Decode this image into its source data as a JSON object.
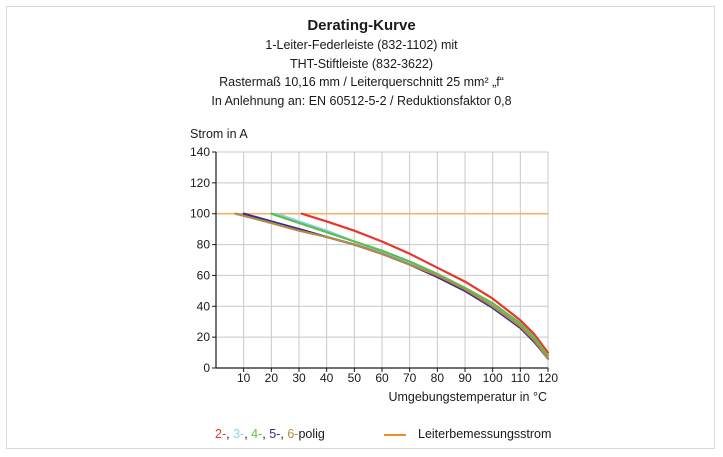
{
  "chart_data": {
    "type": "line",
    "title": "Derating-Kurve",
    "subtitle_lines": [
      "1-Leiter-Federleiste (832-1102) mit",
      "THT-Stiftleiste (832-3622)",
      "Rastermaß 10,16 mm / Leiterquerschnitt 25 mm² „f“",
      "In Anlehnung an: EN 60512-5-2 / Reduktionsfaktor 0,8"
    ],
    "ylabel": "Strom in A",
    "xlabel": "Umgebungstemperatur in °C",
    "xlim": [
      0,
      120
    ],
    "ylim": [
      0,
      140
    ],
    "xticks": [
      "10",
      "20",
      "30",
      "40",
      "50",
      "60",
      "70",
      "80",
      "90",
      "100",
      "110",
      "120"
    ],
    "yticks": [
      "0",
      "20",
      "40",
      "60",
      "80",
      "100",
      "120",
      "140"
    ],
    "grid": true,
    "series": [
      {
        "name": "2-",
        "color": "#e8352b",
        "x": [
          31,
          40,
          50,
          60,
          70,
          80,
          90,
          100,
          110,
          115,
          120
        ],
        "y": [
          100,
          95,
          89,
          82,
          74,
          65,
          56,
          45,
          31,
          22,
          10
        ]
      },
      {
        "name": "3-",
        "color": "#8fd0e6",
        "x": [
          22,
          30,
          40,
          50,
          60,
          70,
          80,
          90,
          100,
          110,
          115,
          120
        ],
        "y": [
          100,
          95,
          89,
          82,
          75,
          68,
          60,
          51,
          41,
          28,
          19,
          8
        ]
      },
      {
        "name": "4-",
        "color": "#5cbf4d",
        "x": [
          20,
          30,
          40,
          50,
          60,
          70,
          80,
          90,
          100,
          110,
          115,
          120
        ],
        "y": [
          100,
          94,
          88,
          82,
          76,
          69,
          61,
          52,
          42,
          29,
          20,
          8
        ]
      },
      {
        "name": "5-",
        "color": "#3b2a8c",
        "x": [
          10,
          20,
          30,
          40,
          50,
          60,
          70,
          80,
          90,
          100,
          110,
          115,
          120
        ],
        "y": [
          100,
          95,
          90,
          85,
          80,
          74,
          67,
          59,
          50,
          39,
          26,
          17,
          6
        ]
      },
      {
        "name": "6-",
        "color": "#b08a4a",
        "x": [
          7,
          20,
          30,
          40,
          50,
          60,
          70,
          80,
          90,
          100,
          110,
          115,
          120
        ],
        "y": [
          100,
          94,
          89,
          85,
          80,
          74,
          67,
          60,
          51,
          40,
          27,
          18,
          6
        ]
      },
      {
        "name": "Leiterbemessungsstrom",
        "color": "#f2b36a",
        "x": [
          0,
          120
        ],
        "y": [
          100,
          100
        ]
      }
    ]
  },
  "legend": {
    "series_prefix": [
      {
        "text": "2-",
        "color": "#e8352b"
      },
      {
        "text": ", ",
        "color": "#1a1a1a"
      },
      {
        "text": "3-",
        "color": "#8fd0e6"
      },
      {
        "text": ", ",
        "color": "#1a1a1a"
      },
      {
        "text": "4-",
        "color": "#5cbf4d"
      },
      {
        "text": ", ",
        "color": "#1a1a1a"
      },
      {
        "text": "5-",
        "color": "#3b2a8c"
      },
      {
        "text": ", ",
        "color": "#1a1a1a"
      },
      {
        "text": "6-",
        "color": "#b08a4a"
      },
      {
        "text": "polig",
        "color": "#1a1a1a"
      }
    ],
    "rated_label": "Leiterbemessungsstrom",
    "rated_color": "#f28c28"
  }
}
